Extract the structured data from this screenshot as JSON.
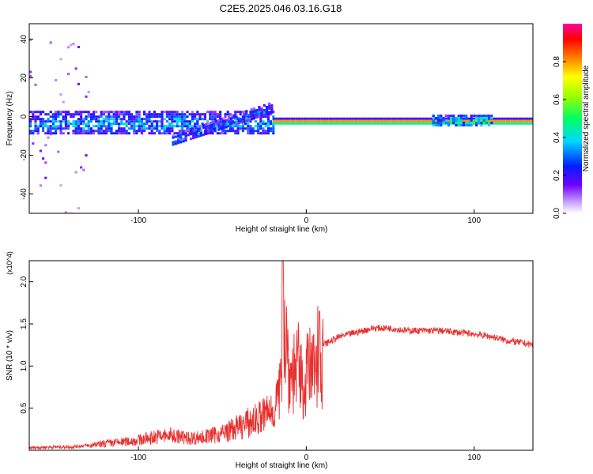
{
  "title": "C2E5.2025.046.03.16.G18",
  "colors": {
    "snr_line": "#e8302e",
    "axis": "#000000"
  },
  "chart_data": [
    {
      "type": "heatmap",
      "xlabel": "Height of straight line (km)",
      "ylabel": "Frequency (Hz)",
      "xlim": [
        -165,
        135
      ],
      "ylim": [
        -50,
        48
      ],
      "xticks": [
        -100,
        0,
        100
      ],
      "xtick_labels": [
        "-100",
        "0",
        "100"
      ],
      "yticks": [
        -40,
        -20,
        0,
        20,
        40
      ],
      "ytick_labels": [
        "-40",
        "-20",
        "0",
        "20",
        "40"
      ],
      "colorbar": {
        "label": "Normalized spectral amplitude",
        "range": [
          0,
          1
        ],
        "ticks": [
          0.0,
          0.2,
          0.4,
          0.6,
          0.8
        ],
        "tick_labels": [
          "0.0",
          "0.2",
          "0.4",
          "0.6",
          "0.8"
        ],
        "colormap": "rainbow (white-purple-blue-cyan-green-yellow-orange-red-magenta)"
      },
      "features": [
        {
          "segment": "diffuse_scatter",
          "x_range": [
            -165,
            -130
          ],
          "freq_range": [
            -50,
            48
          ],
          "amplitude": 0.1
        },
        {
          "segment": "broad_band",
          "x_range": [
            -165,
            -20
          ],
          "freq_center": -3,
          "freq_halfwidth": 6,
          "amplitude": 0.35
        },
        {
          "segment": "rising_band",
          "x_range": [
            -80,
            -20
          ],
          "freq_start": -12,
          "freq_end": 5,
          "amplitude": 0.3
        },
        {
          "segment": "narrow_line",
          "x_range": [
            -20,
            135
          ],
          "freq_center": -2,
          "freq_halfwidth": 1.5,
          "amplitude": 0.95
        },
        {
          "segment": "line_broadening",
          "x_range": [
            75,
            110
          ],
          "freq_center": -2,
          "freq_halfwidth": 3,
          "amplitude": 0.45
        }
      ]
    },
    {
      "type": "line",
      "xlabel": "Height of straight line (km)",
      "ylabel": "SNR (10 * v/v)",
      "y_multiplier": "(x10^4)",
      "xlim": [
        -165,
        135
      ],
      "ylim": [
        0,
        2.25
      ],
      "xticks": [
        -100,
        0,
        100
      ],
      "xtick_labels": [
        "-100",
        "0",
        "100"
      ],
      "yticks": [
        0.5,
        1.0,
        1.5,
        2.0
      ],
      "ytick_labels": [
        "0.5",
        "1.0",
        "1.5",
        "2.0"
      ],
      "series": [
        {
          "x": [
            -165,
            -150,
            -140,
            -130,
            -120,
            -110,
            -100,
            -90,
            -80,
            -70,
            -60,
            -50,
            -40,
            -30,
            -20,
            -15,
            -14,
            -10,
            -5,
            -2,
            0,
            5,
            8,
            10,
            20,
            30,
            40,
            50,
            60,
            70,
            80,
            90,
            100,
            110,
            120,
            130,
            135
          ],
          "y": [
            0.03,
            0.04,
            0.04,
            0.06,
            0.1,
            0.12,
            0.15,
            0.2,
            0.22,
            0.18,
            0.2,
            0.25,
            0.35,
            0.45,
            0.6,
            0.9,
            2.25,
            1.1,
            1.25,
            0.9,
            1.15,
            1.2,
            1.65,
            1.25,
            1.35,
            1.4,
            1.45,
            1.45,
            1.42,
            1.42,
            1.42,
            1.4,
            1.38,
            1.35,
            1.3,
            1.27,
            1.25
          ]
        }
      ]
    }
  ]
}
